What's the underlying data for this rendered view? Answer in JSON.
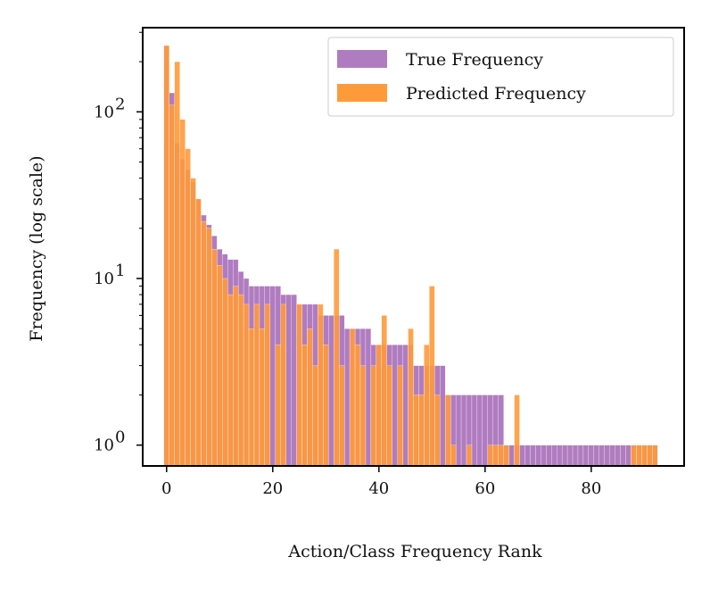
{
  "chart_data": {
    "type": "bar",
    "xlabel": "Action/Class Frequency Rank",
    "ylabel": "Frequency (log scale)",
    "yscale": "log",
    "xlim": [
      -4.5,
      97.5
    ],
    "ylim": [
      0.75,
      320
    ],
    "xticks": [
      0,
      20,
      40,
      60,
      80
    ],
    "yticks": [
      {
        "value": 1,
        "base": "10",
        "exp": "0"
      },
      {
        "value": 10,
        "base": "10",
        "exp": "1"
      },
      {
        "value": 100,
        "base": "10",
        "exp": "2"
      }
    ],
    "legend": {
      "position": "top-right"
    },
    "series": [
      {
        "name": "True Frequency",
        "color": "#b07cc0",
        "x": [
          0,
          1,
          2,
          3,
          4,
          5,
          6,
          7,
          8,
          9,
          10,
          11,
          12,
          13,
          14,
          15,
          16,
          17,
          18,
          19,
          20,
          21,
          22,
          23,
          24,
          25,
          26,
          27,
          28,
          29,
          30,
          31,
          32,
          33,
          34,
          35,
          36,
          37,
          38,
          39,
          40,
          41,
          42,
          43,
          44,
          45,
          46,
          47,
          48,
          49,
          50,
          51,
          52,
          53,
          54,
          55,
          56,
          57,
          58,
          59,
          60,
          61,
          62,
          63,
          64,
          65,
          66,
          67,
          68,
          69,
          70,
          71,
          72,
          73,
          74,
          75,
          76,
          77,
          78,
          79,
          80,
          81,
          82,
          83,
          84,
          85,
          86,
          87,
          88,
          89,
          90,
          91,
          92
        ],
        "values": [
          250,
          130,
          65,
          52,
          45,
          38,
          30,
          24,
          21,
          18,
          15,
          14,
          13,
          13,
          11,
          10,
          9,
          9,
          9,
          9,
          9,
          9,
          8,
          8,
          8,
          7,
          7,
          7,
          7,
          6,
          6,
          6,
          6,
          6,
          5,
          5,
          5,
          5,
          5,
          4,
          4,
          4,
          4,
          4,
          4,
          4,
          4,
          3,
          3,
          3,
          3,
          3,
          3,
          2,
          2,
          2,
          2,
          2,
          2,
          2,
          2,
          2,
          2,
          2,
          1,
          1,
          1,
          1,
          1,
          1,
          1,
          1,
          1,
          1,
          1,
          1,
          1,
          1,
          1,
          1,
          1,
          1,
          1,
          1,
          1,
          1,
          1,
          1,
          1,
          1,
          1,
          1,
          1
        ]
      },
      {
        "name": "Predicted Frequency",
        "color": "#ff9a3a",
        "x": [
          0,
          1,
          2,
          3,
          4,
          5,
          6,
          7,
          8,
          9,
          10,
          11,
          12,
          13,
          14,
          15,
          16,
          17,
          18,
          19,
          21,
          22,
          25,
          26,
          27,
          28,
          29,
          30,
          32,
          33,
          35,
          36,
          37,
          39,
          40,
          41,
          42,
          44,
          46,
          47,
          48,
          49,
          50,
          51,
          53,
          54,
          57,
          61,
          62,
          63,
          64,
          66,
          88,
          89,
          90,
          91,
          92
        ],
        "values": [
          250,
          110,
          200,
          90,
          60,
          40,
          30,
          22,
          20,
          15,
          12,
          10,
          8,
          9,
          8,
          7,
          5,
          7,
          5,
          7,
          4,
          7,
          7,
          4,
          5,
          3,
          7,
          4,
          15,
          3,
          5,
          4,
          3,
          3,
          4,
          6,
          3,
          3,
          5,
          2,
          2,
          4,
          9,
          2,
          2,
          1,
          1,
          1,
          1,
          1,
          1,
          2,
          1,
          1,
          1,
          1,
          1
        ]
      }
    ]
  }
}
